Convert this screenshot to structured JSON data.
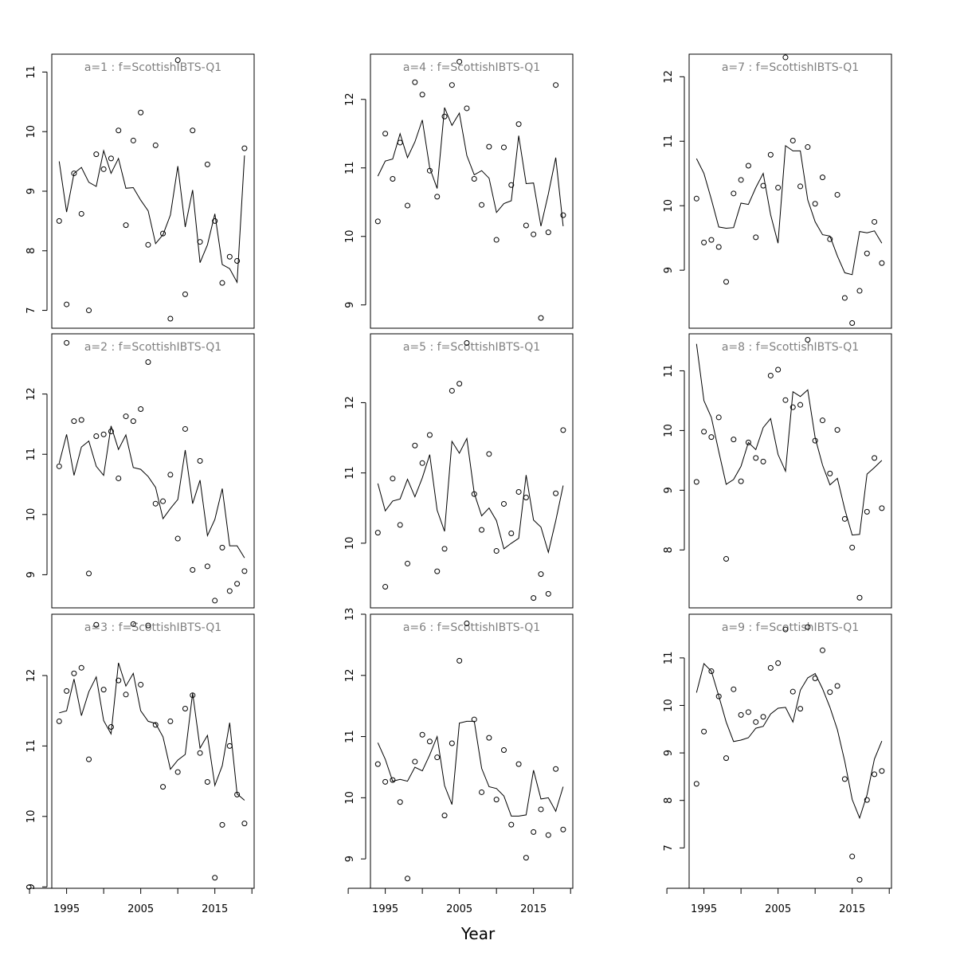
{
  "xlabel": "Year",
  "chart_data": {
    "type": "scatter",
    "xlabel": "Year",
    "panels": [
      {
        "label": "a=1  :  f=ScottishIBTS-Q1",
        "ylim": [
          6.7,
          11.3
        ],
        "yticks": [
          7,
          8,
          9,
          10,
          11
        ],
        "points": [
          8.5,
          7.1,
          9.3,
          8.62,
          7.0,
          9.62,
          9.37,
          9.55,
          10.02,
          8.43,
          9.85,
          10.32,
          8.1,
          9.77,
          8.29,
          6.86,
          11.2,
          7.27,
          10.02,
          8.15,
          9.45,
          8.5,
          7.46,
          7.9,
          7.83,
          9.72
        ],
        "fitted": [
          9.5,
          8.65,
          9.3,
          9.4,
          9.15,
          9.08,
          9.68,
          9.3,
          9.55,
          9.05,
          9.06,
          8.85,
          8.67,
          8.12,
          8.27,
          8.6,
          9.42,
          8.4,
          9.02,
          7.8,
          8.1,
          8.62,
          7.77,
          7.7,
          7.47,
          9.6
        ]
      },
      {
        "label": "a=2  :  f=ScottishIBTS-Q1",
        "ylim": [
          8.45,
          13.0
        ],
        "yticks": [
          9,
          10,
          11,
          12
        ],
        "points": [
          10.8,
          12.85,
          11.55,
          11.57,
          9.02,
          11.3,
          11.33,
          11.38,
          10.6,
          11.63,
          11.55,
          11.75,
          12.53,
          10.18,
          10.22,
          10.66,
          9.6,
          11.42,
          9.08,
          10.89,
          9.14,
          8.57,
          9.45,
          8.73,
          8.85,
          9.06
        ],
        "fitted": [
          10.85,
          11.33,
          10.65,
          11.12,
          11.22,
          10.8,
          10.65,
          11.47,
          11.08,
          11.32,
          10.78,
          10.75,
          10.63,
          10.45,
          9.93,
          10.1,
          10.25,
          11.07,
          10.18,
          10.57,
          9.65,
          9.92,
          10.43,
          9.48,
          9.48,
          9.28
        ]
      },
      {
        "label": "a=3  :  f=ScottishIBTS-Q1",
        "ylim": [
          8.98,
          12.87
        ],
        "yticks": [
          9,
          10,
          11,
          12
        ],
        "points": [
          11.35,
          11.78,
          12.03,
          12.11,
          10.81,
          12.72,
          11.8,
          11.27,
          11.93,
          11.73,
          12.73,
          11.87,
          12.71,
          11.3,
          10.42,
          11.35,
          10.63,
          11.53,
          11.72,
          10.9,
          10.49,
          9.13,
          9.88,
          11.0,
          10.31,
          9.9
        ],
        "fitted": [
          11.47,
          11.5,
          11.95,
          11.43,
          11.77,
          11.98,
          11.36,
          11.17,
          12.18,
          11.85,
          12.03,
          11.5,
          11.35,
          11.32,
          11.13,
          10.67,
          10.8,
          10.88,
          11.75,
          10.97,
          11.15,
          10.44,
          10.72,
          11.33,
          10.32,
          10.23
        ]
      },
      {
        "label": "a=4  :  f=ScottishIBTS-Q1",
        "ylim": [
          8.66,
          12.66
        ],
        "yticks": [
          9,
          10,
          11,
          12
        ],
        "points": [
          10.22,
          11.5,
          10.84,
          11.37,
          10.45,
          12.25,
          12.07,
          10.96,
          10.58,
          11.75,
          12.21,
          12.55,
          11.87,
          10.84,
          10.46,
          11.31,
          9.95,
          11.3,
          10.75,
          11.64,
          10.16,
          10.03,
          8.81,
          10.06,
          12.21,
          10.31
        ],
        "fitted": [
          10.88,
          11.1,
          11.13,
          11.5,
          11.15,
          11.38,
          11.7,
          11.0,
          10.7,
          11.88,
          11.62,
          11.8,
          11.18,
          10.9,
          10.96,
          10.85,
          10.35,
          10.48,
          10.52,
          11.47,
          10.77,
          10.78,
          10.15,
          10.62,
          11.15,
          10.15
        ]
      },
      {
        "label": "a=5  :  f=ScottishIBTS-Q1",
        "ylim": [
          9.08,
          12.98
        ],
        "yticks": [
          10,
          11,
          12
        ],
        "points": [
          10.15,
          9.38,
          10.92,
          10.26,
          9.71,
          11.39,
          11.14,
          11.54,
          9.6,
          9.92,
          12.17,
          12.27,
          12.85,
          10.7,
          10.19,
          11.27,
          9.89,
          10.56,
          10.14,
          10.73,
          10.65,
          9.22,
          9.56,
          9.28,
          10.71,
          11.61
        ],
        "fitted": [
          10.85,
          10.46,
          10.6,
          10.63,
          10.91,
          10.66,
          10.93,
          11.26,
          10.47,
          10.17,
          11.45,
          11.28,
          11.49,
          10.71,
          10.39,
          10.5,
          10.32,
          9.92,
          10.0,
          10.07,
          10.97,
          10.33,
          10.23,
          9.87,
          10.32,
          10.82
        ]
      },
      {
        "label": "a=6  :  f=ScottishIBTS-Q1",
        "ylim": [
          8.52,
          13.0
        ],
        "yticks": [
          9,
          10,
          11,
          12,
          13
        ],
        "points": [
          10.55,
          10.26,
          10.29,
          9.93,
          8.68,
          10.59,
          11.03,
          10.92,
          10.66,
          9.71,
          10.89,
          12.24,
          12.85,
          11.28,
          10.09,
          10.98,
          9.97,
          10.78,
          9.56,
          10.55,
          9.02,
          9.44,
          9.81,
          9.39,
          10.47,
          9.48
        ],
        "fitted": [
          10.9,
          10.63,
          10.27,
          10.3,
          10.27,
          10.5,
          10.44,
          10.7,
          11.0,
          10.2,
          9.89,
          11.22,
          11.25,
          11.25,
          10.48,
          10.18,
          10.15,
          10.03,
          9.7,
          9.7,
          9.72,
          10.45,
          9.98,
          10.0,
          9.78,
          10.18
        ]
      },
      {
        "label": "a=7  :  f=ScottishIBTS-Q1",
        "ylim": [
          8.1,
          12.35
        ],
        "yticks": [
          9,
          10,
          11,
          12
        ],
        "points": [
          10.11,
          9.43,
          9.47,
          9.36,
          8.82,
          10.19,
          10.4,
          10.62,
          9.51,
          10.31,
          10.79,
          10.28,
          12.3,
          11.01,
          10.3,
          10.91,
          10.03,
          10.44,
          9.48,
          10.17,
          8.57,
          8.18,
          8.68,
          9.26,
          9.75,
          9.11
        ],
        "fitted": [
          10.73,
          10.5,
          10.1,
          9.67,
          9.65,
          9.66,
          10.04,
          10.02,
          10.28,
          10.5,
          9.86,
          9.42,
          10.93,
          10.85,
          10.85,
          10.09,
          9.75,
          9.55,
          9.53,
          9.22,
          8.96,
          8.93,
          9.6,
          9.58,
          9.61,
          9.42
        ]
      },
      {
        "label": "a=8  :  f=ScottishIBTS-Q1",
        "ylim": [
          7.03,
          11.62
        ],
        "yticks": [
          8,
          9,
          10,
          11
        ],
        "points": [
          9.14,
          9.98,
          9.89,
          10.22,
          7.85,
          9.85,
          9.15,
          9.8,
          9.54,
          9.48,
          10.92,
          11.02,
          10.51,
          10.39,
          10.43,
          11.52,
          9.83,
          10.17,
          9.28,
          10.01,
          8.52,
          8.04,
          7.2,
          8.64,
          9.54,
          8.7
        ],
        "fitted": [
          11.45,
          10.5,
          10.22,
          9.65,
          9.1,
          9.18,
          9.4,
          9.8,
          9.68,
          10.05,
          10.2,
          9.6,
          9.32,
          10.65,
          10.57,
          10.68,
          9.88,
          9.42,
          9.09,
          9.2,
          8.68,
          8.25,
          8.26,
          9.27,
          9.38,
          9.5
        ]
      },
      {
        "label": "a=9  :  f=ScottishIBTS-Q1",
        "ylim": [
          6.15,
          11.92
        ],
        "yticks": [
          7,
          8,
          9,
          10,
          11
        ],
        "points": [
          8.35,
          9.45,
          10.72,
          10.19,
          8.89,
          10.34,
          9.8,
          9.86,
          9.65,
          9.76,
          10.79,
          10.89,
          11.6,
          10.29,
          9.93,
          11.65,
          10.57,
          11.16,
          10.28,
          10.41,
          8.45,
          6.82,
          6.33,
          8.01,
          8.55,
          8.62
        ],
        "fitted": [
          10.27,
          10.88,
          10.72,
          10.2,
          9.65,
          9.24,
          9.27,
          9.32,
          9.52,
          9.56,
          9.82,
          9.94,
          9.96,
          9.65,
          10.32,
          10.58,
          10.67,
          10.35,
          9.96,
          9.49,
          8.82,
          8.02,
          7.63,
          8.12,
          8.87,
          9.25
        ]
      }
    ]
  },
  "x_years": [
    1994,
    1995,
    1996,
    1997,
    1998,
    1999,
    2000,
    2001,
    2002,
    2003,
    2004,
    2005,
    2006,
    2007,
    2008,
    2009,
    2010,
    2011,
    2012,
    2013,
    2014,
    2015,
    2016,
    2017,
    2018,
    2019
  ],
  "x_ticks": [
    {
      "value": 1995,
      "label": "1995"
    },
    {
      "value": 2005,
      "label": "2005"
    },
    {
      "value": 2015,
      "label": "2015"
    }
  ]
}
